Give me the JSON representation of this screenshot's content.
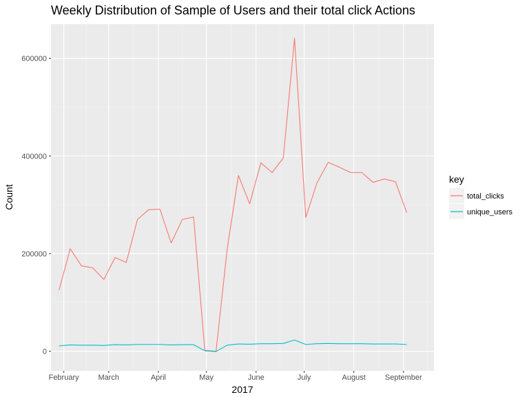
{
  "chart_data": {
    "type": "line",
    "title": "Weekly Distribution of Sample of Users and their total click Actions",
    "xlabel": "2017",
    "ylabel": "Count",
    "x_tick_labels": [
      "February",
      "March",
      "April",
      "May",
      "June",
      "July",
      "August",
      "September"
    ],
    "x_tick_dates": [
      "2017-02-01",
      "2017-03-01",
      "2017-04-01",
      "2017-05-01",
      "2017-06-01",
      "2017-07-01",
      "2017-08-01",
      "2017-09-01"
    ],
    "xlim": [
      "2017-01-24",
      "2017-09-20"
    ],
    "y_tick_labels": [
      "0",
      "200000",
      "400000",
      "600000"
    ],
    "y_ticks": [
      0,
      200000,
      400000,
      600000
    ],
    "ylim": [
      -40000,
      670000
    ],
    "grid": true,
    "legend_title": "key",
    "legend_position": "right",
    "x": [
      "2017-01-29",
      "2017-02-05",
      "2017-02-12",
      "2017-02-19",
      "2017-02-26",
      "2017-03-05",
      "2017-03-12",
      "2017-03-19",
      "2017-03-26",
      "2017-04-02",
      "2017-04-09",
      "2017-04-16",
      "2017-04-23",
      "2017-04-30",
      "2017-05-07",
      "2017-05-14",
      "2017-05-21",
      "2017-05-28",
      "2017-06-04",
      "2017-06-11",
      "2017-06-18",
      "2017-06-25",
      "2017-07-02",
      "2017-07-09",
      "2017-07-16",
      "2017-07-23",
      "2017-07-30",
      "2017-08-06",
      "2017-08-13",
      "2017-08-20",
      "2017-08-27",
      "2017-09-03",
      "2017-09-10"
    ],
    "series": [
      {
        "name": "total_clicks",
        "color": "#F8766D",
        "values": [
          125000,
          210000,
          175000,
          171000,
          147000,
          192000,
          182000,
          270000,
          290000,
          291000,
          222000,
          270000,
          275000,
          2000,
          0,
          210000,
          360000,
          302000,
          386000,
          366000,
          396000,
          641000,
          274000,
          345000,
          387000,
          377000,
          366000,
          366000,
          346000,
          353000,
          347000,
          284000,
          null
        ]
      },
      {
        "name": "unique_users",
        "color": "#00BFC4",
        "values": [
          11000,
          13000,
          12500,
          12500,
          12000,
          13500,
          13000,
          14000,
          14000,
          14000,
          13000,
          13500,
          13500,
          1000,
          -500,
          12500,
          15000,
          14500,
          15500,
          15500,
          16000,
          23000,
          14000,
          15500,
          16000,
          15500,
          15500,
          15500,
          15000,
          15000,
          15000,
          14000,
          null
        ]
      }
    ]
  }
}
